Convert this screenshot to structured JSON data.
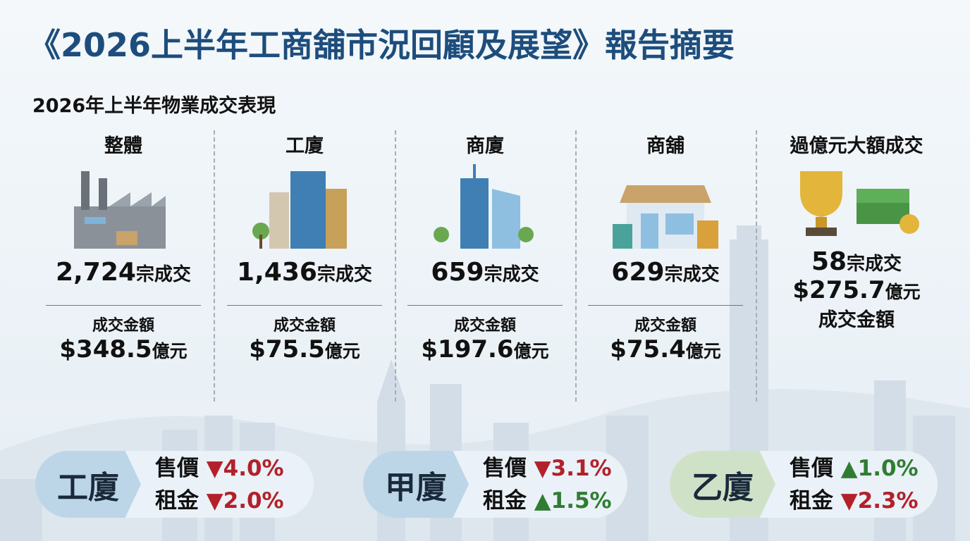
{
  "title": "《2026上半年工商舖市況回顧及展望》報告摘要",
  "subtitle": "2026年上半年物業成交表現",
  "columns": [
    {
      "heading": "整體",
      "count": "2,724",
      "count_unit": "宗成交",
      "amount_label": "成交金額",
      "amount": "$348.5",
      "amount_unit": "億元"
    },
    {
      "heading": "工廈",
      "count": "1,436",
      "count_unit": "宗成交",
      "amount_label": "成交金額",
      "amount": "$75.5",
      "amount_unit": "億元"
    },
    {
      "heading": "商廈",
      "count": "659",
      "count_unit": "宗成交",
      "amount_label": "成交金額",
      "amount": "$197.6",
      "amount_unit": "億元"
    },
    {
      "heading": "商舖",
      "count": "629",
      "count_unit": "宗成交",
      "amount_label": "成交金額",
      "amount": "$75.4",
      "amount_unit": "億元"
    }
  ],
  "big_deals": {
    "heading": "過億元大額成交",
    "count": "58",
    "count_unit": "宗成交",
    "amount": "$275.7",
    "amount_unit": "億元",
    "amount_label": "成交金額"
  },
  "panels": [
    {
      "label": "工廈",
      "rows": [
        {
          "label": "售價",
          "change": "▼4.0%",
          "direction": "down"
        },
        {
          "label": "租金",
          "change": "▼2.0%",
          "direction": "down"
        }
      ]
    },
    {
      "label": "甲廈",
      "rows": [
        {
          "label": "售價",
          "change": "▼3.1%",
          "direction": "down"
        },
        {
          "label": "租金",
          "change": "▲1.5%",
          "direction": "up"
        }
      ]
    },
    {
      "label": "乙廈",
      "rows": [
        {
          "label": "售價",
          "change": "▲1.0%",
          "direction": "up"
        },
        {
          "label": "租金",
          "change": "▼2.3%",
          "direction": "down"
        }
      ]
    }
  ]
}
